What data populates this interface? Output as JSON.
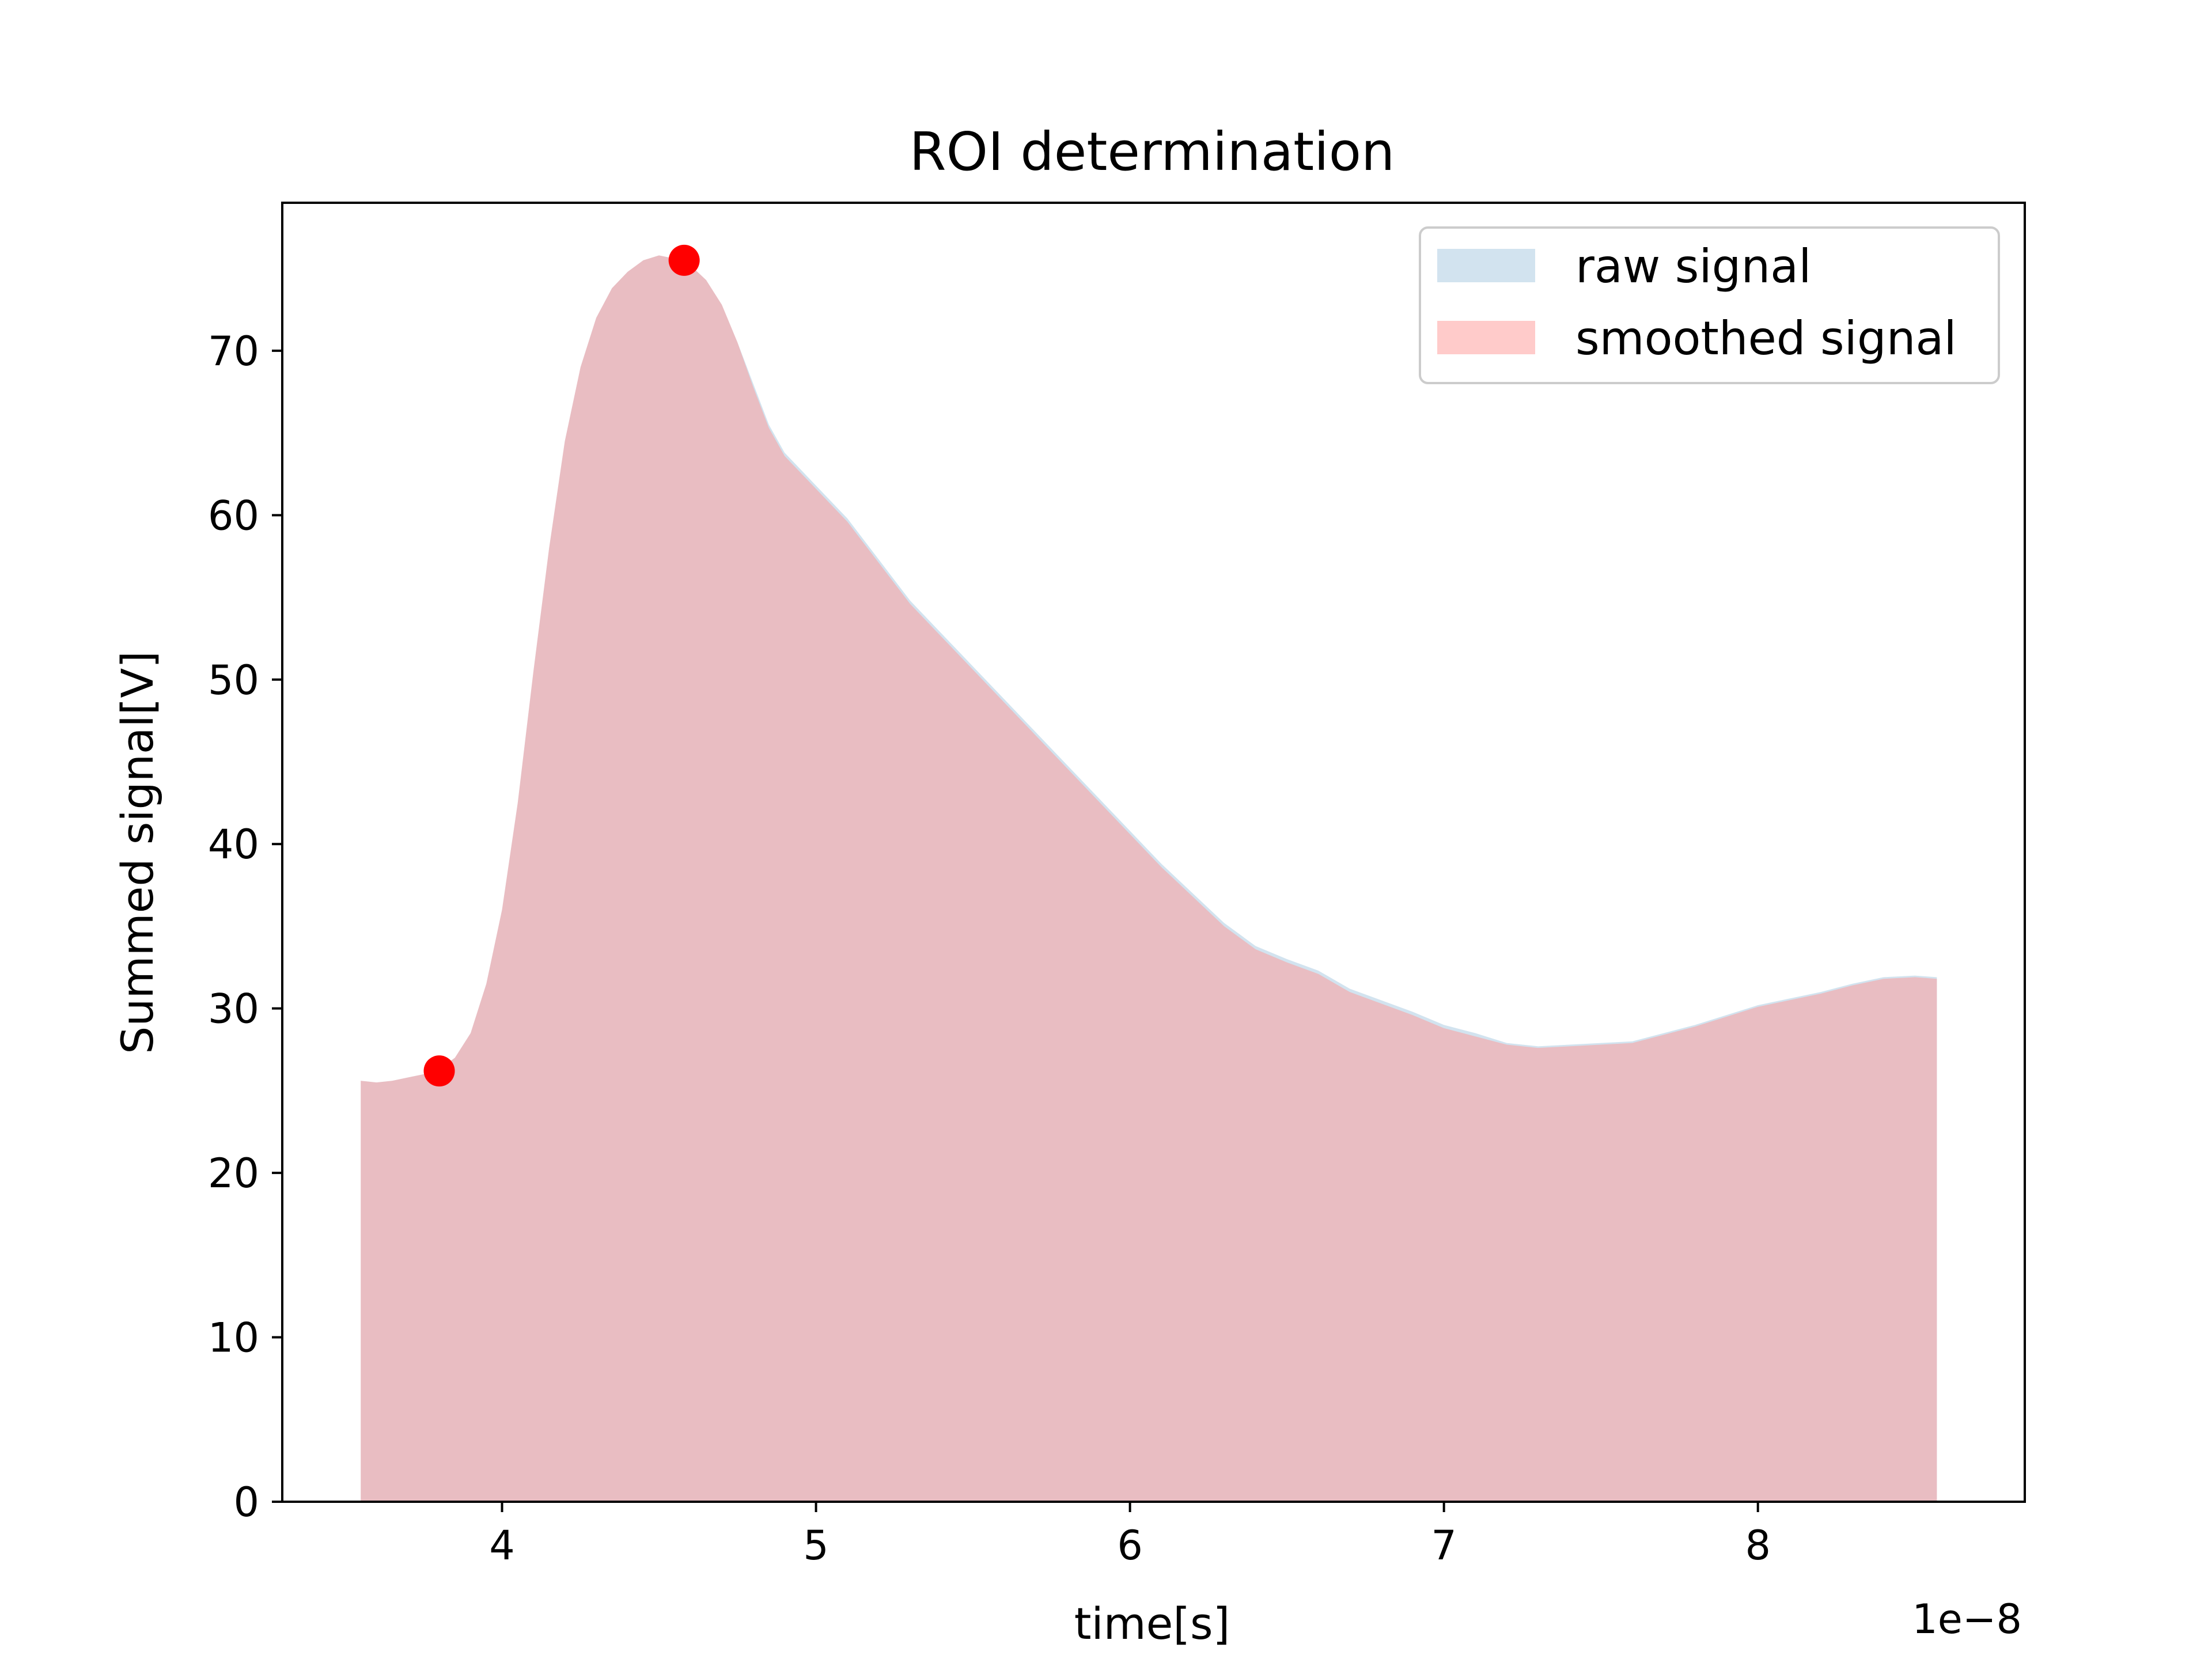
{
  "chart_data": {
    "type": "area",
    "title": "ROI determination",
    "xlabel": "time[s]",
    "ylabel": "Summed signal[V]",
    "x_offset_label": "1e−8",
    "xlim": [
      3.3,
      8.85
    ],
    "ylim": [
      0,
      79
    ],
    "xticks": [
      4,
      5,
      6,
      7,
      8
    ],
    "yticks": [
      0,
      10,
      20,
      30,
      40,
      50,
      60,
      70
    ],
    "legend_position": "upper-right",
    "series": [
      {
        "name": "raw signal",
        "color": "#a6c8e0",
        "opacity": 0.5,
        "x": [
          3.55,
          3.6,
          3.65,
          3.7,
          3.75,
          3.8,
          3.85,
          3.9,
          3.95,
          4.0,
          4.05,
          4.1,
          4.15,
          4.2,
          4.25,
          4.3,
          4.35,
          4.4,
          4.45,
          4.5,
          4.55,
          4.6,
          4.65,
          4.7,
          4.75,
          4.8,
          4.85,
          4.9,
          4.95,
          5.0,
          5.1,
          5.2,
          5.3,
          5.4,
          5.5,
          5.6,
          5.7,
          5.8,
          5.9,
          6.0,
          6.1,
          6.2,
          6.3,
          6.4,
          6.5,
          6.6,
          6.7,
          6.8,
          6.9,
          7.0,
          7.1,
          7.2,
          7.3,
          7.4,
          7.5,
          7.6,
          7.7,
          7.8,
          7.9,
          8.0,
          8.1,
          8.2,
          8.3,
          8.4,
          8.5,
          8.57
        ],
        "y": [
          25.6,
          25.5,
          25.6,
          25.8,
          26.0,
          26.3,
          27.0,
          28.5,
          31.5,
          36.0,
          42.5,
          50.5,
          58.0,
          64.5,
          69.0,
          72.0,
          73.8,
          74.8,
          75.5,
          75.8,
          75.6,
          75.2,
          74.3,
          72.8,
          70.5,
          68.0,
          65.5,
          63.8,
          62.8,
          61.8,
          59.8,
          57.3,
          54.8,
          52.8,
          50.8,
          48.8,
          46.8,
          44.8,
          42.8,
          40.8,
          38.8,
          37.0,
          35.2,
          33.8,
          33.0,
          32.3,
          31.2,
          30.5,
          29.8,
          29.0,
          28.5,
          27.9,
          27.7,
          27.8,
          27.9,
          28.0,
          28.5,
          29.0,
          29.6,
          30.2,
          30.6,
          31.0,
          31.5,
          31.9,
          32.0,
          31.9
        ]
      },
      {
        "name": "smoothed signal",
        "color": "#ff9896",
        "opacity": 0.5,
        "x": [
          3.55,
          3.6,
          3.65,
          3.7,
          3.75,
          3.8,
          3.85,
          3.9,
          3.95,
          4.0,
          4.05,
          4.1,
          4.15,
          4.2,
          4.25,
          4.3,
          4.35,
          4.4,
          4.45,
          4.5,
          4.55,
          4.6,
          4.65,
          4.7,
          4.75,
          4.8,
          4.85,
          4.9,
          4.95,
          5.0,
          5.1,
          5.2,
          5.3,
          5.4,
          5.5,
          5.6,
          5.7,
          5.8,
          5.9,
          6.0,
          6.1,
          6.2,
          6.3,
          6.4,
          6.5,
          6.6,
          6.7,
          6.8,
          6.9,
          7.0,
          7.1,
          7.2,
          7.3,
          7.4,
          7.5,
          7.6,
          7.7,
          7.8,
          7.9,
          8.0,
          8.1,
          8.2,
          8.3,
          8.4,
          8.5,
          8.57
        ],
        "y": [
          25.6,
          25.5,
          25.6,
          25.8,
          26.0,
          26.3,
          27.0,
          28.5,
          31.5,
          36.0,
          42.5,
          50.5,
          58.0,
          64.5,
          69.0,
          72.0,
          73.8,
          74.8,
          75.5,
          75.8,
          75.6,
          75.2,
          74.3,
          72.8,
          70.5,
          67.8,
          65.3,
          63.6,
          62.6,
          61.6,
          59.6,
          57.1,
          54.6,
          52.6,
          50.6,
          48.6,
          46.6,
          44.6,
          42.6,
          40.6,
          38.6,
          36.8,
          35.0,
          33.6,
          32.8,
          32.1,
          31.0,
          30.3,
          29.6,
          28.8,
          28.3,
          27.8,
          27.6,
          27.7,
          27.8,
          27.9,
          28.4,
          28.9,
          29.5,
          30.1,
          30.5,
          30.9,
          31.4,
          31.8,
          31.9,
          31.8
        ]
      }
    ],
    "markers": {
      "color": "#ff0000",
      "points": [
        {
          "x": 3.8,
          "y": 26.2
        },
        {
          "x": 4.58,
          "y": 75.5
        }
      ]
    }
  }
}
